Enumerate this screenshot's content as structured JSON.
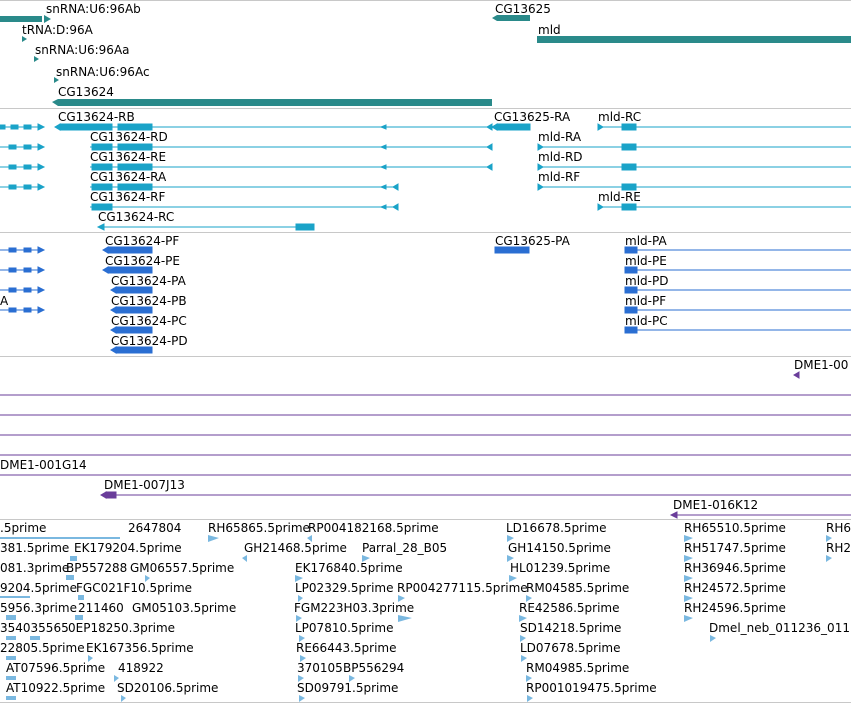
{
  "colors": {
    "gene": "#2a8a8a",
    "transcript": "#1aa3c8",
    "protein": "#2a6ed2",
    "clone": "#6a3d9a",
    "est": "#7ab8e0",
    "separator": "#c8c8c8"
  },
  "gene_track": {
    "labels": [
      "snRNA:U6:96Ab",
      "tRNA:D:96A",
      "snRNA:U6:96Aa",
      "snRNA:U6:96Ac",
      "CG13624",
      "CG13625",
      "mld"
    ]
  },
  "transcript_track": {
    "labels": [
      "CG13624-RB",
      "CG13624-RD",
      "CG13624-RE",
      "CG13624-RA",
      "CG13624-RF",
      "CG13624-RC",
      "CG13625-RA",
      "mld-RC",
      "mld-RA",
      "mld-RD",
      "mld-RF",
      "mld-RE"
    ]
  },
  "protein_track": {
    "labels": [
      "CG13624-PF",
      "CG13624-PE",
      "CG13624-PA",
      "CG13624-PB",
      "CG13624-PC",
      "CG13624-PD",
      "CG13625-PA",
      "mld-PA",
      "mld-PE",
      "mld-PD",
      "mld-PF",
      "mld-PC",
      "A"
    ]
  },
  "clone_track": {
    "labels": [
      "DME1-00",
      "DME1-001G14",
      "DME1-007J13",
      "DME1-016K12"
    ]
  },
  "est_track": {
    "labels": [
      ".5prime",
      "2647804",
      "RH65865.5prime",
      "RP004182168.5prime",
      "LD16678.5prime",
      "RH65510.5prime",
      "RH6",
      "381.5prime",
      "EK179204.5prime",
      "GH21468.5prime",
      "Parral_28_B05",
      "GH14150.5prime",
      "RH51747.5prime",
      "RH2",
      "081.3prime",
      "BP557288",
      "GM06557.5prime",
      "EK176840.5prime",
      "HL01239.5prime",
      "RH36946.5prime",
      "9204.5prime",
      "FGC021F10.5prime",
      "LP02329.5prime",
      "RP004277115.5prime",
      "RM04585.5prime",
      "RH24572.5prime",
      "5956.3prime",
      "211460",
      "GM05103.5prime",
      "FGM223H03.3prime",
      "RE42586.5prime",
      "RH24596.5prime",
      "354035565",
      "0EP18250.3prime",
      "LP07810.5prime",
      "SD14218.5prime",
      "Dmel_neb_011236_011",
      "22805.5prime",
      "EK167356.5prime",
      "RE66443.5prime",
      "LD07678.5prime",
      "AT07596.5prime",
      "418922",
      "370105",
      "BP556294",
      "RM04985.5prime",
      "AT10922.5prime",
      "SD20106.5prime",
      "SD09791.5prime",
      "RP001019475.5prime"
    ]
  }
}
